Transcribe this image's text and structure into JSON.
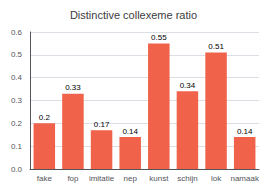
{
  "chart_data": {
    "type": "bar",
    "title": "Distinctive collexeme ratio",
    "categories": [
      "fake",
      "fop",
      "imitatie",
      "nep",
      "kunst",
      "schijn",
      "lok",
      "namaak"
    ],
    "values": [
      0.2,
      0.33,
      0.17,
      0.14,
      0.55,
      0.34,
      0.51,
      0.14
    ],
    "color": "#F0624A",
    "ylim": [
      0.0,
      0.6
    ],
    "yticks": [
      {
        "value": 0,
        "label": "0.0"
      },
      0.1,
      0.2,
      0.3,
      0.4,
      0.5,
      0.6
    ],
    "grid": true,
    "data_labels": true
  }
}
